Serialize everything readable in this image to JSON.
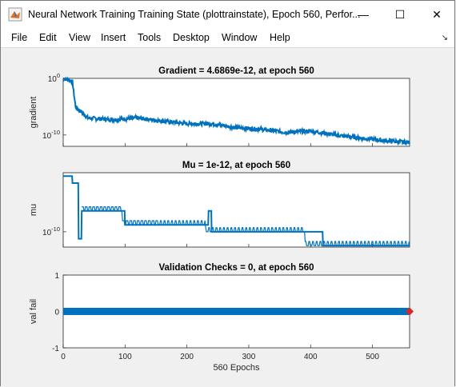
{
  "window": {
    "title": "Neural Network Training Training State (plottrainstate), Epoch 560, Perfor...",
    "minimize": "—",
    "maximize": "☐",
    "close": "✕"
  },
  "menu": [
    "File",
    "Edit",
    "View",
    "Insert",
    "Tools",
    "Desktop",
    "Window",
    "Help"
  ],
  "colors": {
    "line": "#0072bd",
    "marker": "#d62728",
    "axes": "#262626"
  },
  "chart_data": [
    {
      "type": "line",
      "title": "Gradient = 4.6869e-12, at epoch 560",
      "ylabel": "gradient",
      "yscale": "log",
      "y_ticks": [
        "10^0",
        "10^-10"
      ],
      "xlim": [
        0,
        560
      ],
      "points": [
        [
          0,
          1
        ],
        [
          10,
          0.5
        ],
        [
          15,
          0.2
        ],
        [
          20,
          1e-05
        ],
        [
          40,
          1e-07
        ],
        [
          80,
          5e-08
        ],
        [
          120,
          1e-07
        ],
        [
          160,
          3e-08
        ],
        [
          200,
          1e-08
        ],
        [
          240,
          1e-08
        ],
        [
          280,
          2e-09
        ],
        [
          320,
          1e-09
        ],
        [
          360,
          3e-10
        ],
        [
          400,
          5e-10
        ],
        [
          440,
          1e-10
        ],
        [
          480,
          3e-11
        ],
        [
          520,
          1e-11
        ],
        [
          560,
          4.6869e-12
        ]
      ]
    },
    {
      "type": "line",
      "title": "Mu = 1e-12, at epoch 560",
      "ylabel": "mu",
      "yscale": "log",
      "y_ticks": [
        "10^-10"
      ],
      "xlim": [
        0,
        560
      ],
      "points": [
        [
          0,
          0.01
        ],
        [
          15,
          0.001
        ],
        [
          25,
          1e-11
        ],
        [
          30,
          1e-07
        ],
        [
          95,
          1e-07
        ],
        [
          100,
          1e-09
        ],
        [
          230,
          1e-09
        ],
        [
          235,
          1e-07
        ],
        [
          240,
          1e-10
        ],
        [
          390,
          1e-10
        ],
        [
          420,
          1e-12
        ],
        [
          560,
          1e-12
        ]
      ]
    },
    {
      "type": "line",
      "title": "Validation Checks = 0, at epoch 560",
      "ylabel": "val fail",
      "xlabel": "560 Epochs",
      "ylim": [
        -1,
        1
      ],
      "y_ticks": [
        "-1",
        "0",
        "1"
      ],
      "x_ticks": [
        "0",
        "100",
        "200",
        "300",
        "400",
        "500"
      ],
      "xlim": [
        0,
        560
      ],
      "points": [
        [
          0,
          0
        ],
        [
          560,
          0
        ]
      ],
      "final_marker": [
        560,
        0
      ]
    }
  ]
}
